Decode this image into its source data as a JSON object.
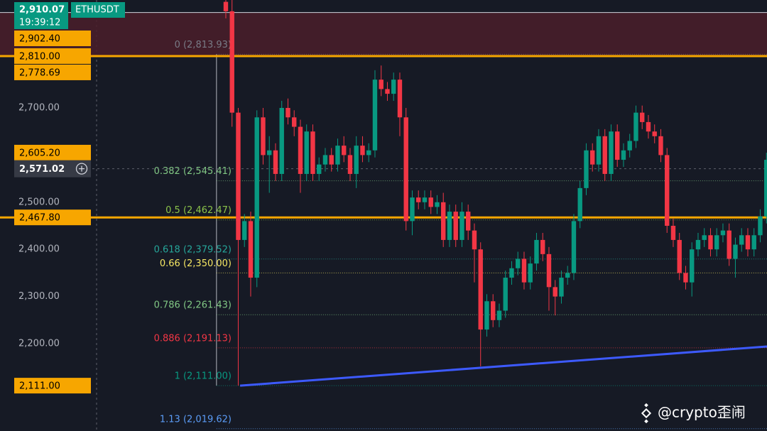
{
  "chart_data": {
    "type": "candlestick",
    "symbol": "ETHUSDT",
    "up_color": "#089981",
    "down_color": "#f23645",
    "ylim": [
      2014.8,
      2928.9
    ],
    "xlim": [
      -36.34,
      87.09
    ],
    "yticks": [
      {
        "value": 2200,
        "label": "2,200.00"
      },
      {
        "value": 2300,
        "label": "2,300.00"
      },
      {
        "value": 2400,
        "label": "2,400.00"
      },
      {
        "value": 2500,
        "label": "2,500.00"
      },
      {
        "value": 2700,
        "label": "2,700.00"
      }
    ],
    "open": [
      2925,
      2905,
      2690,
      2420,
      2460,
      2340,
      2680,
      2600,
      2610,
      2560,
      2700,
      2680,
      2660,
      2560,
      2650,
      2560,
      2580,
      2600,
      2580,
      2620,
      2600,
      2560,
      2620,
      2600,
      2610,
      2760,
      2740,
      2730,
      2760,
      2680,
      2460,
      2510,
      2500,
      2510,
      2490,
      2500,
      2420,
      2480,
      2420,
      2480,
      2440,
      2400,
      2230,
      2290,
      2250,
      2270,
      2340,
      2360,
      2380,
      2330,
      2370,
      2420,
      2390,
      2320,
      2300,
      2340,
      2350,
      2460,
      2530,
      2610,
      2580,
      2640,
      2560,
      2650,
      2590,
      2610,
      2630,
      2690,
      2670,
      2650,
      2640,
      2600,
      2450,
      2420,
      2350,
      2330,
      2400,
      2420,
      2430,
      2400,
      2430,
      2440,
      2380,
      2410,
      2430,
      2400,
      2430,
      2470
    ],
    "high": [
      2929,
      2929,
      2700,
      2475,
      2480,
      2695,
      2700,
      2640,
      2625,
      2715,
      2720,
      2695,
      2675,
      2665,
      2665,
      2595,
      2615,
      2615,
      2635,
      2640,
      2615,
      2640,
      2640,
      2625,
      2780,
      2790,
      2755,
      2775,
      2775,
      2700,
      2525,
      2525,
      2525,
      2525,
      2515,
      2520,
      2495,
      2495,
      2500,
      2495,
      2455,
      2415,
      2305,
      2305,
      2285,
      2355,
      2375,
      2395,
      2395,
      2385,
      2435,
      2435,
      2405,
      2335,
      2355,
      2365,
      2475,
      2545,
      2625,
      2625,
      2655,
      2655,
      2665,
      2665,
      2625,
      2645,
      2705,
      2705,
      2685,
      2665,
      2655,
      2615,
      2465,
      2435,
      2365,
      2415,
      2435,
      2445,
      2445,
      2445,
      2455,
      2455,
      2425,
      2445,
      2445,
      2445,
      2485,
      2605
    ],
    "low": [
      2890,
      2660,
      2111,
      2405,
      2300,
      2320,
      2580,
      2520,
      2545,
      2545,
      2665,
      2640,
      2520,
      2545,
      2545,
      2545,
      2565,
      2565,
      2565,
      2585,
      2545,
      2530,
      2585,
      2585,
      2595,
      2725,
      2715,
      2715,
      2640,
      2440,
      2430,
      2485,
      2485,
      2475,
      2475,
      2405,
      2405,
      2405,
      2405,
      2420,
      2330,
      2152,
      2215,
      2235,
      2235,
      2255,
      2325,
      2345,
      2315,
      2315,
      2355,
      2375,
      2270,
      2260,
      2285,
      2325,
      2335,
      2445,
      2515,
      2565,
      2565,
      2545,
      2545,
      2575,
      2575,
      2595,
      2615,
      2655,
      2635,
      2625,
      2585,
      2435,
      2405,
      2335,
      2315,
      2300,
      2385,
      2405,
      2385,
      2385,
      2415,
      2365,
      2340,
      2395,
      2385,
      2385,
      2415,
      2455
    ],
    "close": [
      2905,
      2690,
      2420,
      2460,
      2340,
      2680,
      2600,
      2610,
      2560,
      2700,
      2680,
      2660,
      2560,
      2650,
      2560,
      2580,
      2600,
      2580,
      2620,
      2600,
      2560,
      2620,
      2600,
      2610,
      2760,
      2740,
      2730,
      2760,
      2680,
      2460,
      2510,
      2500,
      2510,
      2490,
      2500,
      2420,
      2480,
      2420,
      2480,
      2440,
      2400,
      2230,
      2290,
      2250,
      2270,
      2340,
      2360,
      2380,
      2330,
      2370,
      2420,
      2390,
      2320,
      2300,
      2340,
      2350,
      2460,
      2530,
      2610,
      2580,
      2640,
      2560,
      2650,
      2590,
      2610,
      2630,
      2690,
      2670,
      2650,
      2640,
      2600,
      2450,
      2420,
      2350,
      2330,
      2400,
      2420,
      2430,
      2400,
      2430,
      2440,
      2380,
      2410,
      2430,
      2400,
      2430,
      2470,
      2590
    ],
    "current_price": {
      "value": 2910.07,
      "label": "2,910.07",
      "time": "19:39:12",
      "color": "#089981"
    },
    "crosshair": {
      "value": 2571.02,
      "label": "2,571.02"
    },
    "price_labels": [
      {
        "value": 2902.4,
        "label": "2,902.40"
      },
      {
        "value": 2810,
        "label": "2,810.00"
      },
      {
        "value": 2778.69,
        "label": "2,778.69"
      },
      {
        "value": 2605.2,
        "label": "2,605.20"
      },
      {
        "value": 2467.8,
        "label": "2,467.80"
      },
      {
        "value": 2111,
        "label": "2,111.00"
      }
    ],
    "price_label_color": "#f7a600",
    "zone": {
      "from": 2810,
      "to": 2902.4,
      "color": "#4a1f2a"
    },
    "horizontal_lines": [
      {
        "value": 2810,
        "color": "#f7a600"
      },
      {
        "value": 2467.8,
        "color": "#f7a600"
      }
    ],
    "trendline": {
      "x": [
        2.3,
        87.09
      ],
      "y": [
        2111,
        2194
      ],
      "color": "#3d5afe"
    },
    "fib": {
      "start_x": -1.5,
      "levels": [
        {
          "ratio": 0,
          "price": 2813.93,
          "label": "0 (2,813.93)",
          "color": "#787b86"
        },
        {
          "ratio": 0.382,
          "price": 2545.41,
          "label": "0.382 (2,545.41)",
          "color": "#81c784"
        },
        {
          "ratio": 0.5,
          "price": 2462.47,
          "label": "0.5 (2,462.47)",
          "color": "#8bc34a"
        },
        {
          "ratio": 0.618,
          "price": 2379.52,
          "label": "0.618 (2,379.52)",
          "color": "#26a69a"
        },
        {
          "ratio": 0.66,
          "price": 2350,
          "label": "0.66 (2,350.00)",
          "color": "#f5e663"
        },
        {
          "ratio": 0.786,
          "price": 2261.43,
          "label": "0.786 (2,261.43)",
          "color": "#81c784"
        },
        {
          "ratio": 0.886,
          "price": 2191.13,
          "label": "0.886 (2,191.13)",
          "color": "#f23645"
        },
        {
          "ratio": 1,
          "price": 2111,
          "label": "1 (2,111.00)",
          "color": "#089981"
        },
        {
          "ratio": 1.13,
          "price": 2019.62,
          "label": "1.13 (2,019.62)",
          "color": "#5b9cf6"
        }
      ]
    }
  },
  "watermark": "@crypto歪闹"
}
